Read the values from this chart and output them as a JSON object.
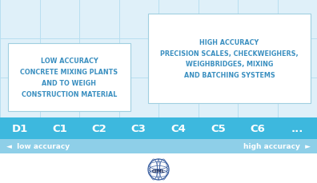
{
  "bg_color": "#ffffff",
  "grid_color": "#b8dff0",
  "bar_color": "#3db8de",
  "bar_light_color": "#8ecfe8",
  "text_color_blue": "#3a8fc0",
  "text_color_white": "#ffffff",
  "categories": [
    "D1",
    "C1",
    "C2",
    "C3",
    "C4",
    "C5",
    "C6",
    "..."
  ],
  "low_text": "LOW ACCURACY\nCONCRETE MIXING PLANTS\nAND TO WEIGH\nCONSTRUCTION MATERIAL",
  "high_text": "HIGH ACCURACY\nPRECISION SCALES, CHECKWEIGHERS,\nWEIGHBRIDGES, MIXING\nAND BATCHING SYSTEMS",
  "low_label": "◄  low accuracy",
  "high_label": "high accuracy  ►",
  "n_cols": 8,
  "figsize": [
    3.96,
    2.3
  ],
  "dpi": 100,
  "upper_bg": "#dff0f9",
  "box_edge_color": "#a0cfe0",
  "logo_color": "#3a5fa0"
}
